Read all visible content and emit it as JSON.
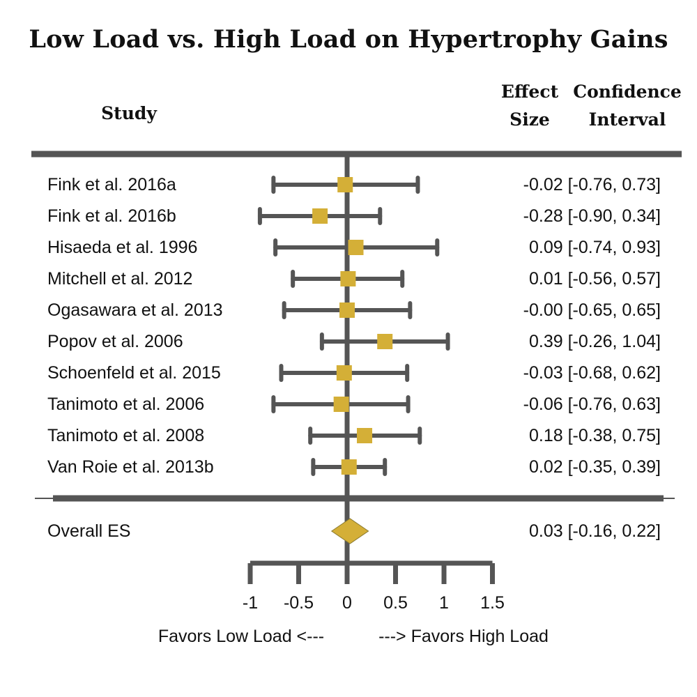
{
  "title": "Low Load vs. High Load on Hypertrophy Gains",
  "headers": {
    "study": "Study",
    "effect_line1": "Effect",
    "effect_line2": "Size",
    "ci_line1": "Confidence",
    "ci_line2": "Interval"
  },
  "colors": {
    "marker": "#D4AF37",
    "lines": "#555555",
    "text": "#111111"
  },
  "chart_data": {
    "type": "forest",
    "title": "Low Load vs. High Load on Hypertrophy Gains",
    "xlim": [
      -1,
      1.5
    ],
    "xticks": [
      -1,
      -0.5,
      0,
      0.5,
      1,
      1.5
    ],
    "xtick_labels": [
      "-1",
      "-0.5",
      "0",
      "0.5",
      "1",
      "1.5"
    ],
    "xlabel_left": "Favors Low Load <---",
    "xlabel_right": "---> Favors High Load",
    "studies": [
      {
        "name": "Fink et al. 2016a",
        "es": -0.02,
        "lo": -0.76,
        "hi": 0.73,
        "text": "-0.02 [-0.76, 0.73]"
      },
      {
        "name": "Fink et al. 2016b",
        "es": -0.28,
        "lo": -0.9,
        "hi": 0.34,
        "text": "-0.28 [-0.90, 0.34]"
      },
      {
        "name": "Hisaeda et al. 1996",
        "es": 0.09,
        "lo": -0.74,
        "hi": 0.93,
        "text": "0.09 [-0.74, 0.93]"
      },
      {
        "name": "Mitchell et al. 2012",
        "es": 0.01,
        "lo": -0.56,
        "hi": 0.57,
        "text": "0.01 [-0.56, 0.57]"
      },
      {
        "name": "Ogasawara et al. 2013",
        "es": -0.0,
        "lo": -0.65,
        "hi": 0.65,
        "text": "-0.00 [-0.65, 0.65]"
      },
      {
        "name": "Popov et al. 2006",
        "es": 0.39,
        "lo": -0.26,
        "hi": 1.04,
        "text": "0.39 [-0.26, 1.04]"
      },
      {
        "name": "Schoenfeld et al. 2015",
        "es": -0.03,
        "lo": -0.68,
        "hi": 0.62,
        "text": "-0.03 [-0.68, 0.62]"
      },
      {
        "name": "Tanimoto et al. 2006",
        "es": -0.06,
        "lo": -0.76,
        "hi": 0.63,
        "text": "-0.06 [-0.76, 0.63]"
      },
      {
        "name": "Tanimoto et al. 2008",
        "es": 0.18,
        "lo": -0.38,
        "hi": 0.75,
        "text": "0.18 [-0.38, 0.75]"
      },
      {
        "name": "Van Roie et al. 2013b",
        "es": 0.02,
        "lo": -0.35,
        "hi": 0.39,
        "text": "0.02 [-0.35, 0.39]"
      }
    ],
    "overall": {
      "name": "Overall ES",
      "es": 0.03,
      "lo": -0.16,
      "hi": 0.22,
      "text": "0.03 [-0.16, 0.22]"
    }
  }
}
